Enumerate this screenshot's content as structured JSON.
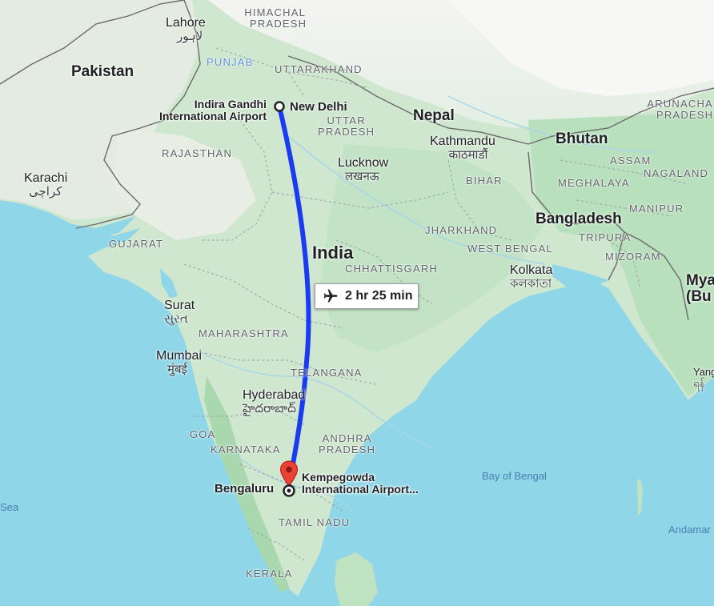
{
  "route": {
    "origin": {
      "name": "New Delhi",
      "airport": "Indira Gandhi International Airport"
    },
    "destination": {
      "city": "Bengaluru",
      "airport": "Kempegowda International Airport..."
    },
    "duration": "2 hr 25 min",
    "route_color": "#1a3cf0",
    "pin_color": "#ea4335"
  },
  "countries": {
    "pakistan": "Pakistan",
    "india": "India",
    "nepal": "Nepal",
    "bhutan": "Bhutan",
    "bangladesh": "Bangladesh",
    "myanmar_line1": "Mya",
    "myanmar_line2": "(Bu"
  },
  "states": {
    "himachal_1": "HIMACHAL",
    "himachal_2": "PRADESH",
    "punjab": "PUNJAB",
    "uttarakhand": "UTTARAKHAND",
    "uttar_1": "UTTAR",
    "uttar_2": "PRADESH",
    "rajasthan": "RAJASTHAN",
    "bihar": "BIHAR",
    "jharkhand": "JHARKHAND",
    "west_bengal": "WEST BENGAL",
    "gujarat": "GUJARAT",
    "chhattisgarh": "CHHATTISGARH",
    "maharashtra": "MAHARASHTRA",
    "telangana": "TELANGANA",
    "goa": "GOA",
    "karnataka": "KARNATAKA",
    "andhra_1": "ANDHRA",
    "andhra_2": "PRADESH",
    "tamil_nadu": "TAMIL NADU",
    "kerala": "KERALA",
    "assam": "ASSAM",
    "arunachal_1": "ARUNACHA",
    "arunachal_2": "PRADESH",
    "nagaland": "NAGALAND",
    "meghalaya": "MEGHALAYA",
    "manipur": "MANIPUR",
    "tripura": "TRIPURA",
    "mizoram": "MIZORAM"
  },
  "cities": {
    "lahore": {
      "name": "Lahore",
      "native": "لاہور"
    },
    "karachi": {
      "name": "Karachi",
      "native": "کراچی"
    },
    "kathmandu": {
      "name": "Kathmandu",
      "native": "काठमाडौं"
    },
    "lucknow": {
      "name": "Lucknow",
      "native": "लखनऊ"
    },
    "kolkata": {
      "name": "Kolkata",
      "native": "কলকাতা"
    },
    "surat": {
      "name": "Surat",
      "native": "સુરત"
    },
    "mumbai": {
      "name": "Mumbai",
      "native": "मुंबई"
    },
    "hyderabad": {
      "name": "Hyderabad",
      "native": "హైదరాబాద్"
    },
    "yangon_partial": {
      "name": "Yang",
      "native": "ရန်"
    }
  },
  "water": {
    "bay_of_bengal": "Bay of Bengal",
    "arabian_sea_partial": "Sea",
    "andaman_partial": "Andamar"
  }
}
